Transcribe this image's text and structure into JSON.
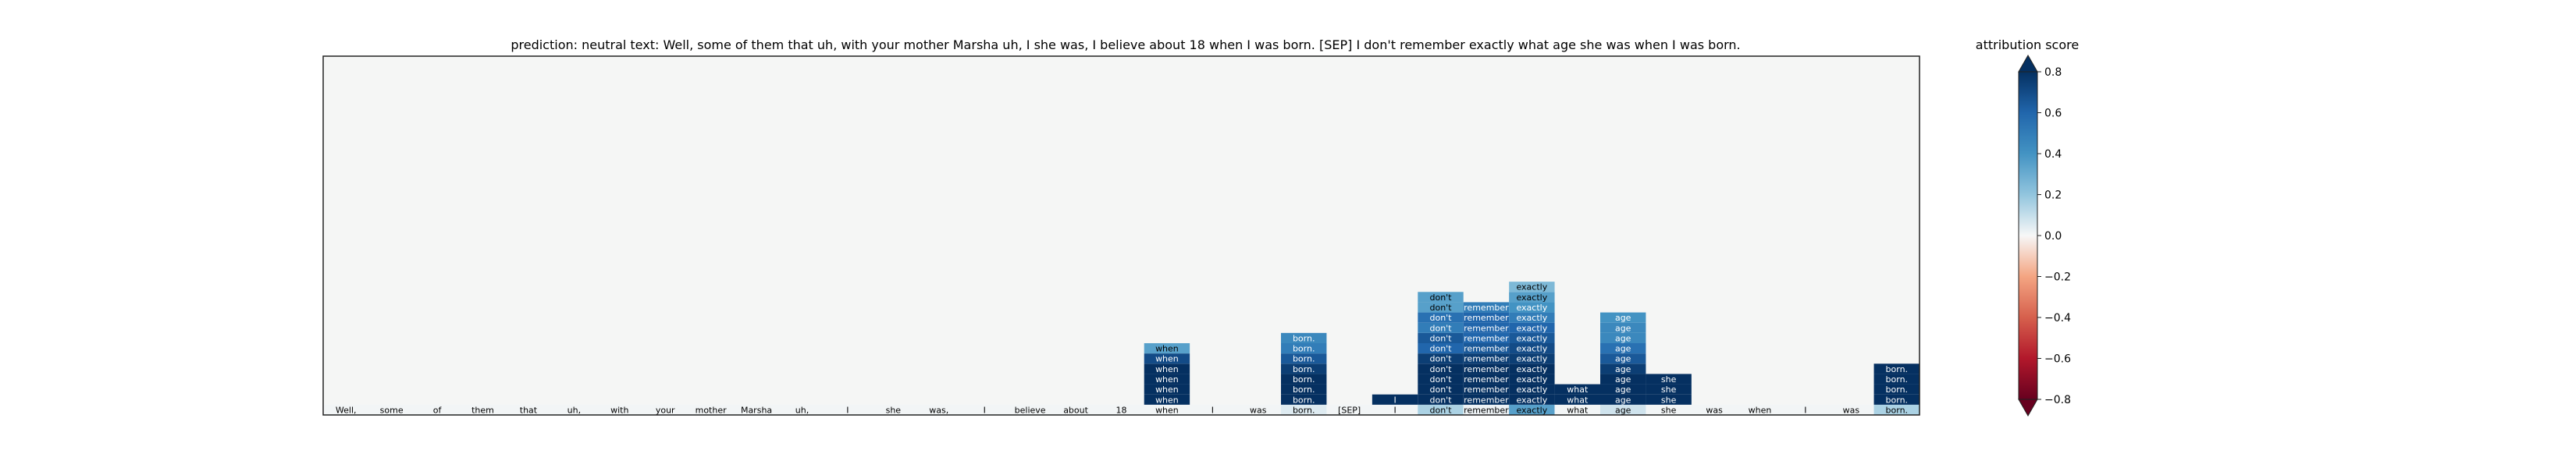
{
  "figure": {
    "title": "prediction:  neutral     text:  Well, some of them that uh, with your mother Marsha uh, I she was, I believe about 18 when I was born. [SEP] I don't remember exactly what age she was when I was born.",
    "colorbar_title": "attribution score"
  },
  "chart_data": {
    "type": "heatmap",
    "title": "prediction:  neutral     text:  Well, some of them that uh, with your mother Marsha uh, I she was, I believe about 18 when I was born. [SEP] I don't remember exactly what age she was when I was born.",
    "prediction": "neutral",
    "tokens": [
      "Well,",
      "some",
      "of",
      "them",
      "that",
      "uh,",
      "with",
      "your",
      "mother",
      "Marsha",
      "uh,",
      "I",
      "she",
      "was,",
      "I",
      "believe",
      "about",
      "18",
      "when",
      "I",
      "was",
      "born.",
      "[SEP]",
      "I",
      "don't",
      "remember",
      "exactly",
      "what",
      "age",
      "she",
      "was",
      "when",
      "I",
      "was",
      "born."
    ],
    "row_count": 35,
    "base_row_values": [
      0.01,
      0.01,
      0.01,
      0.01,
      0.01,
      0.01,
      0.01,
      0.01,
      0.01,
      0.01,
      0.01,
      0.01,
      0.01,
      0.01,
      0.01,
      0.01,
      0.01,
      0.01,
      0.01,
      0.01,
      0.01,
      0.05,
      0.01,
      0.01,
      0.15,
      0.02,
      0.35,
      0.01,
      0.08,
      0.01,
      0.01,
      0.01,
      0.01,
      0.01,
      0.15
    ],
    "columns": [
      {
        "token_index": 18,
        "values": [
          0.8,
          0.8,
          0.8,
          0.8,
          0.7,
          0.35
        ]
      },
      {
        "token_index": 21,
        "values": [
          0.8,
          0.8,
          0.8,
          0.75,
          0.65,
          0.5,
          0.45
        ]
      },
      {
        "token_index": 23,
        "values": [
          0.8
        ]
      },
      {
        "token_index": 24,
        "values": [
          0.8,
          0.8,
          0.8,
          0.8,
          0.75,
          0.6,
          0.65,
          0.5,
          0.55,
          0.35,
          0.35
        ]
      },
      {
        "token_index": 25,
        "values": [
          0.8,
          0.8,
          0.8,
          0.8,
          0.75,
          0.65,
          0.6,
          0.6,
          0.6,
          0.5
        ]
      },
      {
        "token_index": 26,
        "values": [
          0.8,
          0.8,
          0.8,
          0.8,
          0.75,
          0.7,
          0.65,
          0.6,
          0.5,
          0.4,
          0.35,
          0.25
        ]
      },
      {
        "token_index": 27,
        "values": [
          0.8,
          0.8
        ]
      },
      {
        "token_index": 28,
        "values": [
          0.8,
          0.8,
          0.8,
          0.75,
          0.65,
          0.55,
          0.45,
          0.45,
          0.4
        ]
      },
      {
        "token_index": 29,
        "values": [
          0.8,
          0.8,
          0.8
        ]
      },
      {
        "token_index": 34,
        "values": [
          0.8,
          0.8,
          0.8,
          0.8
        ]
      }
    ],
    "colorbar": {
      "label": "attribution score",
      "vmin": -0.8,
      "vmax": 0.8,
      "ticks": [
        0.8,
        0.6,
        0.4,
        0.2,
        0.0,
        -0.2,
        -0.4,
        -0.6,
        -0.8
      ],
      "tick_labels": [
        "0.8",
        "0.6",
        "0.4",
        "0.2",
        "0.0",
        "−0.2",
        "−0.4",
        "−0.6",
        "−0.8"
      ],
      "colormap": "RdBu",
      "extend": "both"
    },
    "grid": false
  }
}
